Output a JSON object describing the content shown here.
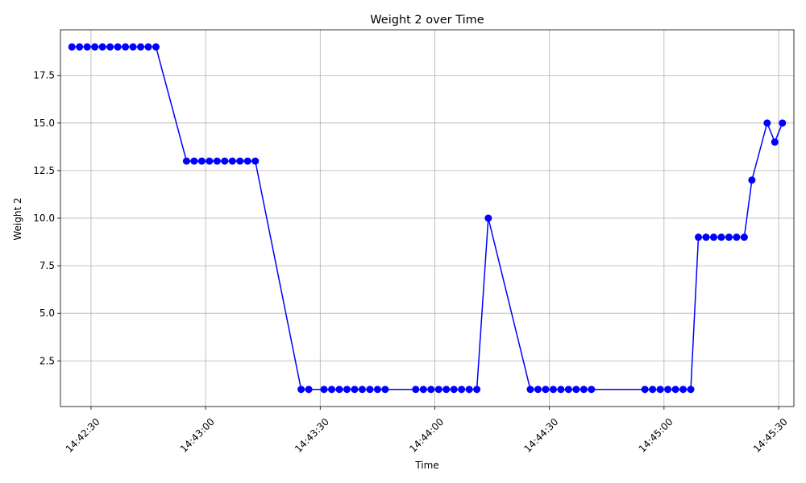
{
  "chart_data": {
    "type": "line",
    "title": "Weight 2 over Time",
    "xlabel": "Time",
    "ylabel": "Weight 2",
    "x_ticks": [
      "14:42:30",
      "14:43:00",
      "14:43:30",
      "14:44:00",
      "14:44:30",
      "14:45:00",
      "14:45:30"
    ],
    "y_ticks": [
      2.5,
      5.0,
      7.5,
      10.0,
      12.5,
      15.0,
      17.5
    ],
    "xlim": [
      "14:42:22",
      "14:45:34"
    ],
    "ylim": [
      0.1,
      19.9
    ],
    "grid": true,
    "series": [
      {
        "color": "#0000ff",
        "marker": "circle",
        "x": [
          "14:42:25",
          "14:42:27",
          "14:42:29",
          "14:42:31",
          "14:42:33",
          "14:42:35",
          "14:42:37",
          "14:42:39",
          "14:42:41",
          "14:42:43",
          "14:42:45",
          "14:42:47",
          "14:42:55",
          "14:42:57",
          "14:42:59",
          "14:43:01",
          "14:43:03",
          "14:43:05",
          "14:43:07",
          "14:43:09",
          "14:43:11",
          "14:43:13",
          "14:43:25",
          "14:43:27",
          "14:43:31",
          "14:43:33",
          "14:43:35",
          "14:43:37",
          "14:43:39",
          "14:43:41",
          "14:43:43",
          "14:43:45",
          "14:43:47",
          "14:43:55",
          "14:43:57",
          "14:43:59",
          "14:44:01",
          "14:44:03",
          "14:44:05",
          "14:44:07",
          "14:44:09",
          "14:44:11",
          "14:44:14",
          "14:44:25",
          "14:44:27",
          "14:44:29",
          "14:44:31",
          "14:44:33",
          "14:44:35",
          "14:44:37",
          "14:44:39",
          "14:44:41",
          "14:44:55",
          "14:44:57",
          "14:44:59",
          "14:45:01",
          "14:45:03",
          "14:45:05",
          "14:45:07",
          "14:45:09",
          "14:45:11",
          "14:45:13",
          "14:45:15",
          "14:45:17",
          "14:45:19",
          "14:45:21",
          "14:45:23",
          "14:45:27",
          "14:45:29",
          "14:45:31"
        ],
        "y": [
          19,
          19,
          19,
          19,
          19,
          19,
          19,
          19,
          19,
          19,
          19,
          19,
          13,
          13,
          13,
          13,
          13,
          13,
          13,
          13,
          13,
          13,
          1,
          1,
          1,
          1,
          1,
          1,
          1,
          1,
          1,
          1,
          1,
          1,
          1,
          1,
          1,
          1,
          1,
          1,
          1,
          1,
          10,
          1,
          1,
          1,
          1,
          1,
          1,
          1,
          1,
          1,
          1,
          1,
          1,
          1,
          1,
          1,
          1,
          9,
          9,
          9,
          9,
          9,
          9,
          9,
          12,
          15,
          14,
          15
        ]
      }
    ]
  }
}
